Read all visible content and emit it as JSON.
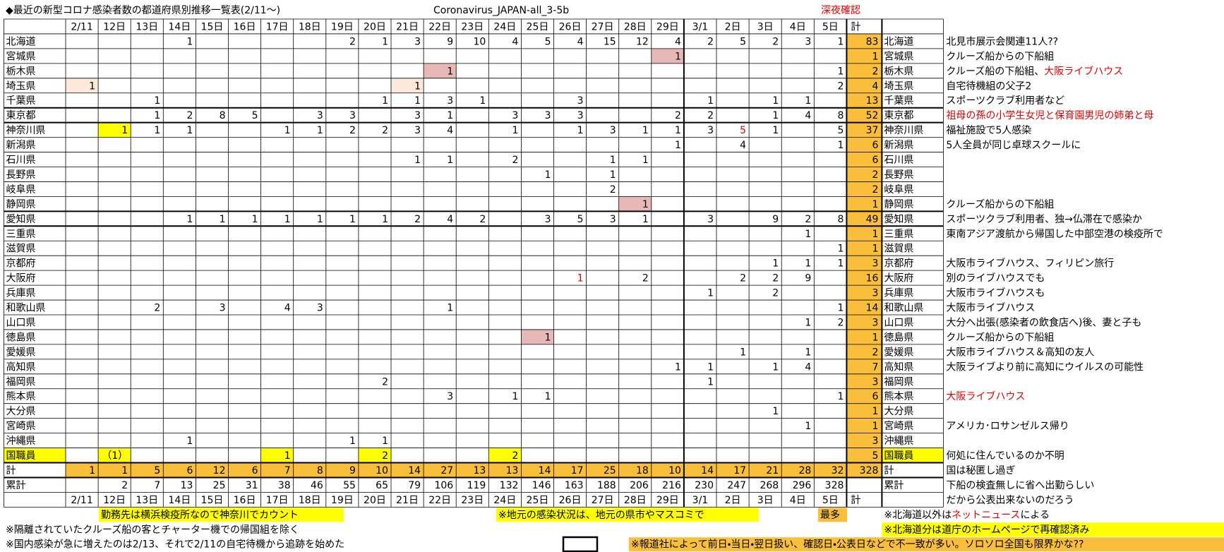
{
  "header": {
    "title": "◆最近の新型コロナ感染者数の都道府県別推移一覧表(2/11～)",
    "file": "Coronavirus_JAPAN-all_3-5b",
    "status": "深夜確認"
  },
  "table": {
    "columns": [
      "2/11",
      "12日",
      "13日",
      "14日",
      "15日",
      "16日",
      "17日",
      "18日",
      "19日",
      "20日",
      "21日",
      "22日",
      "23日",
      "24日",
      "25日",
      "26日",
      "27日",
      "28日",
      "29日",
      "3/1",
      "2日",
      "3日",
      "4日",
      "5日"
    ],
    "total_header": "計",
    "rows": [
      {
        "name": "北海道",
        "cells": [
          null,
          null,
          null,
          1,
          null,
          null,
          null,
          null,
          2,
          1,
          3,
          9,
          10,
          4,
          5,
          4,
          15,
          12,
          4,
          2,
          5,
          2,
          3,
          1
        ],
        "total": 83,
        "comment": "北見市展示会関連11人??"
      },
      {
        "name": "宮城県",
        "cells": [
          null,
          null,
          null,
          null,
          null,
          null,
          null,
          null,
          null,
          null,
          null,
          null,
          null,
          null,
          null,
          null,
          null,
          null,
          1,
          null,
          null,
          null,
          null,
          null
        ],
        "total": 1,
        "comment": "クルーズ船からの下船組"
      },
      {
        "name": "栃木県",
        "cells": [
          null,
          null,
          null,
          null,
          null,
          null,
          null,
          null,
          null,
          null,
          null,
          1,
          null,
          null,
          null,
          null,
          null,
          null,
          null,
          null,
          null,
          null,
          null,
          1
        ],
        "total": 2,
        "comment": [
          "クルーズ船の下船組、",
          "大阪ライブハウス"
        ]
      },
      {
        "name": "埼玉県",
        "cells": [
          1,
          null,
          null,
          null,
          null,
          null,
          null,
          null,
          null,
          null,
          1,
          null,
          null,
          null,
          null,
          null,
          null,
          null,
          null,
          null,
          null,
          null,
          null,
          2
        ],
        "total": 4,
        "comment": "自宅待機組の父子2"
      },
      {
        "name": "千葉県",
        "cells": [
          null,
          null,
          1,
          null,
          null,
          null,
          null,
          null,
          null,
          1,
          1,
          3,
          1,
          null,
          null,
          3,
          null,
          null,
          null,
          1,
          null,
          1,
          1,
          null
        ],
        "total": 13,
        "comment": "スポーツクラブ利用者など"
      },
      {
        "name": "東京都",
        "cells": [
          null,
          null,
          1,
          2,
          8,
          5,
          null,
          3,
          3,
          null,
          3,
          1,
          null,
          3,
          3,
          3,
          null,
          null,
          2,
          2,
          null,
          1,
          4,
          8
        ],
        "total": 52,
        "comment": "祖母の孫の小学生女児と保育園男児の姉弟と母"
      },
      {
        "name": "神奈川県",
        "cells": [
          null,
          1,
          1,
          1,
          null,
          null,
          1,
          1,
          2,
          2,
          3,
          4,
          null,
          1,
          null,
          1,
          3,
          1,
          1,
          3,
          5,
          1,
          null,
          5
        ],
        "total": 37,
        "comment": "福祉施設で5人感染"
      },
      {
        "name": "新潟県",
        "cells": [
          null,
          null,
          null,
          null,
          null,
          null,
          null,
          null,
          null,
          null,
          null,
          null,
          null,
          null,
          null,
          null,
          null,
          null,
          1,
          null,
          4,
          null,
          null,
          1
        ],
        "total": 6,
        "comment": "5人全員が同じ卓球スクールに"
      },
      {
        "name": "石川県",
        "cells": [
          null,
          null,
          null,
          null,
          null,
          null,
          null,
          null,
          null,
          null,
          1,
          1,
          null,
          2,
          null,
          null,
          1,
          1,
          null,
          null,
          null,
          null,
          null,
          null
        ],
        "total": 6
      },
      {
        "name": "長野県",
        "cells": [
          null,
          null,
          null,
          null,
          null,
          null,
          null,
          null,
          null,
          null,
          null,
          null,
          null,
          null,
          1,
          null,
          1,
          null,
          null,
          null,
          null,
          null,
          null,
          null
        ],
        "total": 2
      },
      {
        "name": "岐阜県",
        "cells": [
          null,
          null,
          null,
          null,
          null,
          null,
          null,
          null,
          null,
          null,
          null,
          null,
          null,
          null,
          null,
          null,
          2,
          null,
          null,
          null,
          null,
          null,
          null,
          null
        ],
        "total": 2
      },
      {
        "name": "静岡県",
        "cells": [
          null,
          null,
          null,
          null,
          null,
          null,
          null,
          null,
          null,
          null,
          null,
          null,
          null,
          null,
          null,
          null,
          null,
          1,
          null,
          null,
          null,
          null,
          null,
          null
        ],
        "total": 1,
        "comment": "クルーズ船からの下船組"
      },
      {
        "name": "愛知県",
        "cells": [
          null,
          null,
          null,
          1,
          1,
          1,
          1,
          1,
          1,
          1,
          2,
          4,
          2,
          null,
          3,
          5,
          3,
          1,
          null,
          3,
          null,
          9,
          2,
          8
        ],
        "total": 49,
        "comment": "スポーツクラブ利用者、独→仏滞在で感染か"
      },
      {
        "name": "三重県",
        "cells": [
          null,
          null,
          null,
          null,
          null,
          null,
          null,
          null,
          null,
          null,
          null,
          null,
          null,
          null,
          null,
          null,
          null,
          null,
          null,
          null,
          null,
          null,
          1,
          null
        ],
        "total": 1,
        "comment": "東南アジア渡航から帰国した中部空港の検疫所で"
      },
      {
        "name": "滋賀県",
        "cells": [
          null,
          null,
          null,
          null,
          null,
          null,
          null,
          null,
          null,
          null,
          null,
          null,
          null,
          null,
          null,
          null,
          null,
          null,
          null,
          null,
          null,
          null,
          null,
          1
        ],
        "total": 1
      },
      {
        "name": "京都府",
        "cells": [
          null,
          null,
          null,
          null,
          null,
          null,
          null,
          null,
          null,
          null,
          null,
          null,
          null,
          null,
          null,
          null,
          null,
          null,
          null,
          null,
          null,
          1,
          1,
          1
        ],
        "total": 3,
        "comment": "大阪市ライブハウス、フィリピン旅行"
      },
      {
        "name": "大阪府",
        "cells": [
          null,
          null,
          null,
          null,
          null,
          null,
          null,
          null,
          null,
          null,
          null,
          null,
          null,
          null,
          null,
          1,
          null,
          2,
          null,
          null,
          2,
          2,
          9,
          null
        ],
        "total": 16,
        "comment": "別のライブハウスでも"
      },
      {
        "name": "兵庫県",
        "cells": [
          null,
          null,
          null,
          null,
          null,
          null,
          null,
          null,
          null,
          null,
          null,
          null,
          null,
          null,
          null,
          null,
          null,
          null,
          null,
          1,
          null,
          2,
          null,
          null
        ],
        "total": 3,
        "comment": "大阪市ライブハウスも"
      },
      {
        "name": "和歌山県",
        "cells": [
          null,
          null,
          2,
          null,
          3,
          null,
          4,
          3,
          null,
          null,
          null,
          1,
          null,
          null,
          null,
          null,
          null,
          null,
          null,
          null,
          null,
          null,
          null,
          1
        ],
        "total": 14,
        "comment": "大阪市ライブハウス"
      },
      {
        "name": "山口県",
        "cells": [
          null,
          null,
          null,
          null,
          null,
          null,
          null,
          null,
          null,
          null,
          null,
          null,
          null,
          null,
          null,
          null,
          null,
          null,
          null,
          null,
          null,
          null,
          1,
          2
        ],
        "total": 3,
        "comment": "大分へ出張(感染者の飲食店へ)後、妻と子も"
      },
      {
        "name": "徳島県",
        "cells": [
          null,
          null,
          null,
          null,
          null,
          null,
          null,
          null,
          null,
          null,
          null,
          null,
          null,
          null,
          1,
          null,
          null,
          null,
          null,
          null,
          null,
          null,
          null,
          null
        ],
        "total": 1,
        "comment": "クルーズ船からの下船組"
      },
      {
        "name": "愛媛県",
        "cells": [
          null,
          null,
          null,
          null,
          null,
          null,
          null,
          null,
          null,
          null,
          null,
          null,
          null,
          null,
          null,
          null,
          null,
          null,
          null,
          null,
          1,
          null,
          1,
          null
        ],
        "total": 2,
        "comment": "大阪市ライブハウス＆高知の友人"
      },
      {
        "name": "高知県",
        "cells": [
          null,
          null,
          null,
          null,
          null,
          null,
          null,
          null,
          null,
          null,
          null,
          null,
          null,
          null,
          null,
          null,
          null,
          null,
          1,
          1,
          null,
          1,
          4,
          null
        ],
        "total": 7,
        "comment": "大阪ライブより前に高知にウイルスの可能性"
      },
      {
        "name": "福岡県",
        "cells": [
          null,
          null,
          null,
          null,
          null,
          null,
          null,
          null,
          null,
          2,
          null,
          null,
          null,
          null,
          null,
          null,
          null,
          null,
          null,
          1,
          null,
          null,
          null,
          null
        ],
        "total": 3
      },
      {
        "name": "熊本県",
        "cells": [
          null,
          null,
          null,
          null,
          null,
          null,
          null,
          null,
          null,
          null,
          null,
          3,
          null,
          1,
          1,
          null,
          null,
          null,
          null,
          null,
          null,
          null,
          null,
          1
        ],
        "total": 6,
        "comment": "大阪ライブハウス"
      },
      {
        "name": "大分県",
        "cells": [
          null,
          null,
          null,
          null,
          null,
          null,
          null,
          null,
          null,
          null,
          null,
          null,
          null,
          null,
          null,
          null,
          null,
          null,
          null,
          null,
          null,
          1,
          null,
          null
        ],
        "total": 1
      },
      {
        "name": "宮崎県",
        "cells": [
          null,
          null,
          null,
          null,
          null,
          null,
          null,
          null,
          null,
          null,
          null,
          null,
          null,
          null,
          null,
          null,
          null,
          null,
          null,
          null,
          null,
          null,
          1,
          null
        ],
        "total": 1,
        "comment": "アメリカ･ロサンゼルス帰り"
      },
      {
        "name": "沖縄県",
        "cells": [
          null,
          null,
          null,
          1,
          null,
          null,
          null,
          null,
          1,
          1,
          null,
          null,
          null,
          null,
          null,
          null,
          null,
          null,
          null,
          null,
          null,
          null,
          null,
          null
        ],
        "total": 3
      },
      {
        "name": "国職員",
        "cells": [
          null,
          "（1）",
          null,
          null,
          null,
          null,
          1,
          null,
          null,
          2,
          null,
          null,
          null,
          2,
          null,
          null,
          null,
          null,
          null,
          null,
          null,
          null,
          null,
          null
        ],
        "total": 5,
        "comment": "何処に住んでいるのか不明"
      }
    ],
    "sum_row": {
      "name": "計",
      "cells": [
        1,
        1,
        5,
        6,
        12,
        6,
        7,
        8,
        9,
        10,
        14,
        27,
        13,
        13,
        14,
        17,
        25,
        18,
        10,
        14,
        17,
        21,
        28,
        32
      ],
      "total": 328,
      "comment": "国は秘匿し過ぎ"
    },
    "cumulative_row": {
      "name": "累計",
      "cells": [
        null,
        2,
        7,
        13,
        25,
        31,
        38,
        46,
        55,
        65,
        79,
        106,
        119,
        132,
        146,
        163,
        188,
        206,
        216,
        230,
        247,
        268,
        296,
        328
      ],
      "comment": "下船の検査無しに省へ出勤らしい"
    },
    "footer_comment": "だから公表出来ないのだろう"
  },
  "notes": [
    "勤務先は横浜検疫所なので神奈川でカウント",
    "※地元の感染状況は、地元の県市やマスコミで",
    "最多",
    [
      "※北海道以外は",
      "ネットニュース",
      "による"
    ],
    "※隔離されていたクルーズ船の客とチャーター機での帰国組を除く",
    "※北海道分は道庁のホームページで再確認済み",
    "※国内感染が急に増えたのは2/13、それで2/11の自宅待機から追跡を始めた",
    "※報道社によって前日・当日・翌日扱い、確認日・公表日などで不一致が多い。ソロソロ全国も限界かな??"
  ]
}
